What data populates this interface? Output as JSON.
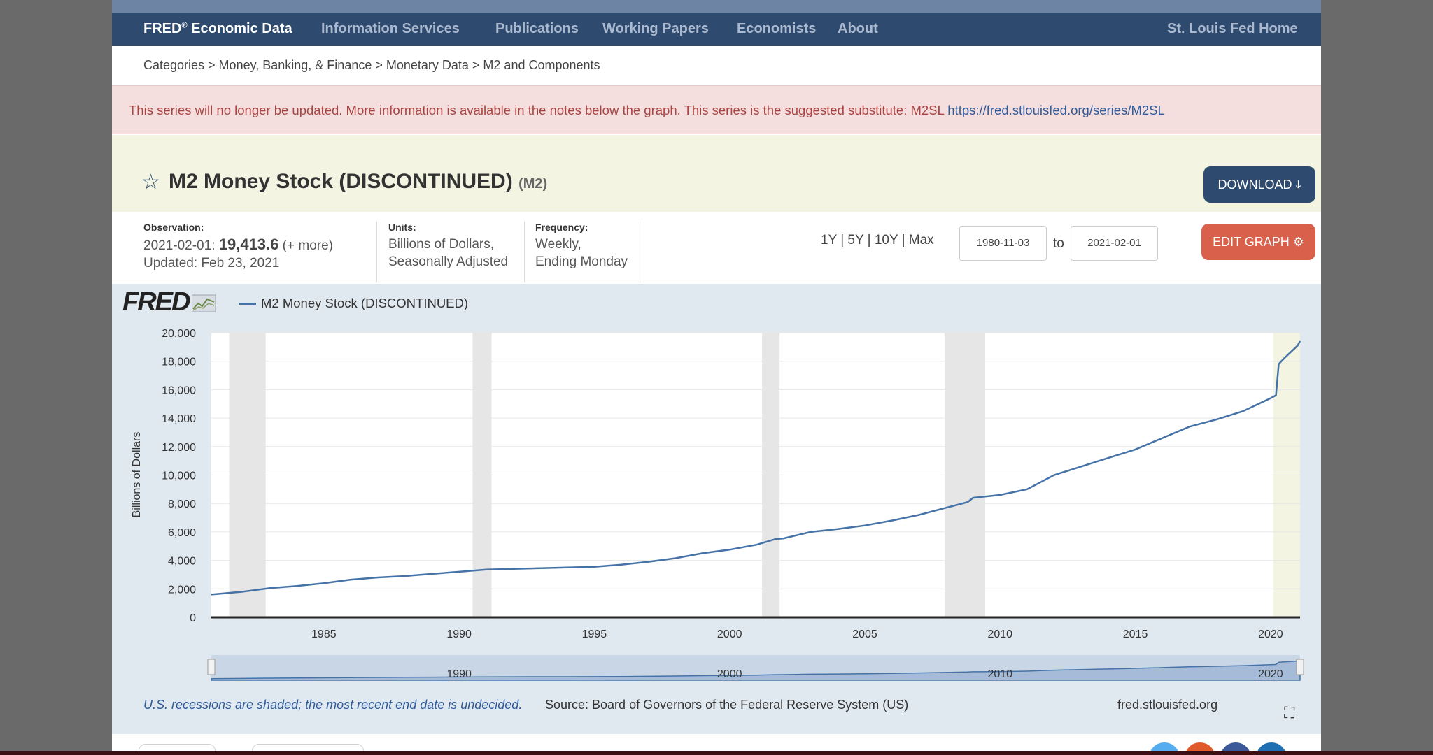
{
  "nav": {
    "brand": "FRED",
    "brand_reg": "®",
    "brand_suffix": " Economic Data",
    "items": [
      "Information Services",
      "Publications",
      "Working Papers",
      "Economists",
      "About"
    ],
    "home": "St. Louis Fed Home"
  },
  "breadcrumb": "Categories > Money, Banking, & Finance > Monetary Data > M2 and Components",
  "alert": {
    "text": "This series will no longer be updated. More information is available in the notes below the graph. This series is the suggested substitute: M2SL ",
    "link": "https://fred.stlouisfed.org/series/M2SL"
  },
  "title": {
    "star_icon": "star-outline-icon",
    "text": "M2 Money Stock (DISCONTINUED)",
    "series_id": "(M2)",
    "download_label": "DOWNLOAD",
    "download_icon": "download-icon"
  },
  "meta": {
    "observation_label": "Observation:",
    "obs_date": "2021-02-01:",
    "obs_value": "19,413.6",
    "obs_more": "(+ more)",
    "updated": "Updated: Feb 23, 2021",
    "units_label": "Units:",
    "units_line1": "Billions of Dollars,",
    "units_line2": "Seasonally Adjusted",
    "frequency_label": "Frequency:",
    "frequency_line1": "Weekly,",
    "frequency_line2": "Ending Monday"
  },
  "controls": {
    "ranges": [
      "1Y",
      "5Y",
      "10Y",
      "Max"
    ],
    "separator": "|",
    "start_date": "1980-11-03",
    "to": "to",
    "end_date": "2021-02-01",
    "edit_label": "EDIT GRAPH",
    "edit_icon": "gear-icon"
  },
  "graph": {
    "logo": "FRED",
    "logo_icon": "chart-line-icon",
    "legend_label": "M2 Money Stock (DISCONTINUED)",
    "footer_note": "U.S. recessions are shaded; the most recent end date is undecided.",
    "footer_source": "Source: Board of Governors of the Federal Reserve System (US)",
    "footer_domain": "fred.stlouisfed.org",
    "fullscreen_icon": "fullscreen-icon"
  },
  "colors": {
    "nav": "#2e4a6f",
    "series": "#4572a7",
    "recession": "#e6e6e6",
    "edit_button": "#d9614c"
  },
  "chart_data": {
    "type": "line",
    "title": "",
    "xlabel": "",
    "ylabel": "Billions of Dollars",
    "xlim": [
      1980.84,
      2021.09
    ],
    "ylim": [
      0,
      20000
    ],
    "y_ticks": [
      0,
      2000,
      4000,
      6000,
      8000,
      10000,
      12000,
      14000,
      16000,
      18000,
      20000
    ],
    "y_tick_labels": [
      "0",
      "2,000",
      "4,000",
      "6,000",
      "8,000",
      "10,000",
      "12,000",
      "14,000",
      "16,000",
      "18,000",
      "20,000"
    ],
    "x_ticks": [
      1985,
      1990,
      1995,
      2000,
      2005,
      2010,
      2015,
      2020
    ],
    "recessions": [
      [
        1981.5,
        1982.85
      ],
      [
        1990.5,
        1991.2
      ],
      [
        2001.2,
        2001.85
      ],
      [
        2007.95,
        2009.45
      ],
      [
        2020.1,
        2021.09
      ]
    ],
    "series": [
      {
        "name": "M2 Money Stock (DISCONTINUED)",
        "x": [
          1980.84,
          1982.0,
          1983.0,
          1984.0,
          1985.0,
          1986.0,
          1987.0,
          1988.0,
          1989.0,
          1990.0,
          1991.0,
          1992.0,
          1993.0,
          1994.0,
          1995.0,
          1996.0,
          1997.0,
          1998.0,
          1999.0,
          2000.0,
          2001.0,
          2001.7,
          2002.0,
          2003.0,
          2004.0,
          2005.0,
          2006.0,
          2007.0,
          2008.0,
          2008.8,
          2009.0,
          2010.0,
          2011.0,
          2011.5,
          2011.7,
          2012.0,
          2013.0,
          2014.0,
          2015.0,
          2016.0,
          2017.0,
          2018.0,
          2019.0,
          2020.0,
          2020.2,
          2020.3,
          2020.5,
          2021.0,
          2021.09
        ],
        "y": [
          1600,
          1800,
          2050,
          2200,
          2400,
          2650,
          2800,
          2900,
          3050,
          3200,
          3350,
          3400,
          3450,
          3500,
          3550,
          3700,
          3900,
          4150,
          4500,
          4750,
          5100,
          5500,
          5550,
          6000,
          6200,
          6450,
          6800,
          7200,
          7700,
          8100,
          8400,
          8600,
          9000,
          9500,
          9700,
          10000,
          10600,
          11200,
          11800,
          12600,
          13400,
          13900,
          14500,
          15400,
          15600,
          17800,
          18200,
          19100,
          19413.6
        ]
      }
    ],
    "navigator_labels": [
      "1990",
      "2000",
      "2010",
      "2020"
    ],
    "legend": "top-left",
    "grid": true
  }
}
